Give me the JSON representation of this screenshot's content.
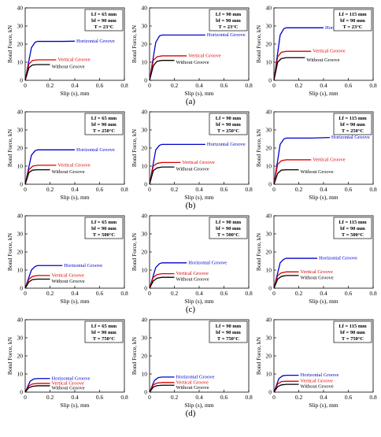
{
  "figure": {
    "row_labels": [
      "(a)",
      "(b)",
      "(c)",
      "(d)"
    ],
    "xlabel": "Slip (s), mm",
    "ylabel": "Bond Force, kN"
  },
  "chart_data": [
    {
      "type": "line",
      "row": 0,
      "col": 0,
      "legend": [
        "Lf = 65 mm",
        "bf = 90 mm",
        "T = 23°C"
      ],
      "xlim": [
        0,
        0.8
      ],
      "ylim": [
        0,
        40
      ],
      "x_ticks": [
        0,
        0.2,
        0.4,
        0.6,
        0.8
      ],
      "y_ticks": [
        0,
        10,
        20,
        30,
        40
      ],
      "xlabel": "Slip (s), mm",
      "ylabel": "Bond Force, kN",
      "series": [
        {
          "name": "Horizontal Groove",
          "color": "#0000cc",
          "x": [
            0,
            0.05,
            0.08,
            0.1,
            0.2,
            0.3,
            0.4
          ],
          "y": [
            0,
            18,
            21,
            21.5,
            21.5,
            21.5,
            21.6
          ]
        },
        {
          "name": "Vertical Groove",
          "color": "#dd0000",
          "x": [
            0,
            0.03,
            0.06,
            0.1,
            0.2,
            0.25
          ],
          "y": [
            0,
            9,
            11,
            11.3,
            11.3,
            11.3
          ]
        },
        {
          "name": "Without Groove",
          "color": "#000000",
          "x": [
            0,
            0.03,
            0.06,
            0.1,
            0.15,
            0.2
          ],
          "y": [
            0,
            7,
            8.5,
            8.7,
            8.7,
            8.7
          ]
        }
      ]
    },
    {
      "type": "line",
      "row": 0,
      "col": 1,
      "legend": [
        "Lf = 90 mm",
        "bf = 90 mm",
        "T = 23°C"
      ],
      "xlim": [
        0,
        0.8
      ],
      "ylim": [
        0,
        40
      ],
      "x_ticks": [
        0,
        0.2,
        0.4,
        0.6,
        0.8
      ],
      "y_ticks": [
        0,
        10,
        20,
        30,
        40
      ],
      "xlabel": "Slip (s), mm",
      "ylabel": "Bond Force, kN",
      "series": [
        {
          "name": "Horizontal Groove",
          "color": "#0000cc",
          "x": [
            0,
            0.05,
            0.08,
            0.1,
            0.2,
            0.3,
            0.45
          ],
          "y": [
            0,
            21,
            24.5,
            25,
            25,
            25,
            25
          ]
        },
        {
          "name": "Vertical Groove",
          "color": "#dd0000",
          "x": [
            0,
            0.03,
            0.06,
            0.1,
            0.2,
            0.3
          ],
          "y": [
            0,
            11,
            13,
            13.5,
            13.5,
            13.5
          ]
        },
        {
          "name": "Without Groove",
          "color": "#000000",
          "x": [
            0,
            0.03,
            0.06,
            0.1,
            0.15,
            0.2
          ],
          "y": [
            0,
            8,
            10.5,
            11,
            11,
            11
          ]
        }
      ]
    },
    {
      "type": "line",
      "row": 0,
      "col": 2,
      "legend": [
        "Lf = 115 mm",
        "bf = 90 mm",
        "T = 23°C"
      ],
      "xlim": [
        0,
        0.8
      ],
      "ylim": [
        0,
        40
      ],
      "x_ticks": [
        0,
        0.2,
        0.4,
        0.6,
        0.8
      ],
      "y_ticks": [
        0,
        10,
        20,
        30,
        40
      ],
      "xlabel": "Slip (s), mm",
      "ylabel": "Bond Force, kN",
      "series": [
        {
          "name": "Horizontal Groove",
          "color": "#0000cc",
          "x": [
            0,
            0.05,
            0.08,
            0.1,
            0.2,
            0.3,
            0.4
          ],
          "y": [
            0,
            25,
            28.5,
            29,
            29,
            29,
            29
          ]
        },
        {
          "name": "Vertical Groove",
          "color": "#dd0000",
          "x": [
            0,
            0.03,
            0.06,
            0.1,
            0.2,
            0.3
          ],
          "y": [
            0,
            13,
            15.5,
            16,
            16,
            16
          ]
        },
        {
          "name": "Without Groove",
          "color": "#000000",
          "x": [
            0,
            0.03,
            0.06,
            0.1,
            0.2,
            0.25
          ],
          "y": [
            0,
            10,
            12,
            12.5,
            12.5,
            12.5
          ]
        }
      ]
    },
    {
      "type": "line",
      "row": 1,
      "col": 0,
      "legend": [
        "Lf = 65 mm",
        "bf = 90 mm",
        "T = 250°C"
      ],
      "xlim": [
        0,
        0.8
      ],
      "ylim": [
        0,
        40
      ],
      "x_ticks": [
        0,
        0.2,
        0.4,
        0.6,
        0.8
      ],
      "y_ticks": [
        0,
        10,
        20,
        30,
        40
      ],
      "xlabel": "Slip (s), mm",
      "ylabel": "Bond Force, kN",
      "series": [
        {
          "name": "Horizontal Groove",
          "color": "#0000cc",
          "x": [
            0,
            0.05,
            0.08,
            0.1,
            0.2,
            0.3,
            0.4
          ],
          "y": [
            0,
            16,
            18.5,
            19,
            19,
            19,
            19
          ]
        },
        {
          "name": "Vertical Groove",
          "color": "#dd0000",
          "x": [
            0,
            0.03,
            0.06,
            0.1,
            0.2,
            0.25
          ],
          "y": [
            0,
            8,
            10,
            10.5,
            10.5,
            10.5
          ]
        },
        {
          "name": "Without Groove",
          "color": "#000000",
          "x": [
            0,
            0.03,
            0.06,
            0.1,
            0.15,
            0.2
          ],
          "y": [
            0,
            6.5,
            7.8,
            8,
            8,
            8
          ]
        }
      ]
    },
    {
      "type": "line",
      "row": 1,
      "col": 1,
      "legend": [
        "Lf = 90 mm",
        "bf = 90 mm",
        "T = 250°C"
      ],
      "xlim": [
        0,
        0.8
      ],
      "ylim": [
        0,
        40
      ],
      "x_ticks": [
        0,
        0.2,
        0.4,
        0.6,
        0.8
      ],
      "y_ticks": [
        0,
        10,
        20,
        30,
        40
      ],
      "xlabel": "Slip (s), mm",
      "ylabel": "Bond Force, kN",
      "series": [
        {
          "name": "Horizontal Groove",
          "color": "#0000cc",
          "x": [
            0,
            0.05,
            0.08,
            0.1,
            0.2,
            0.3,
            0.45
          ],
          "y": [
            0,
            19,
            21.5,
            22,
            22,
            22,
            22
          ]
        },
        {
          "name": "Vertical Groove",
          "color": "#dd0000",
          "x": [
            0,
            0.03,
            0.06,
            0.1,
            0.2,
            0.25
          ],
          "y": [
            0,
            10,
            11.5,
            12,
            12,
            12
          ]
        },
        {
          "name": "Without Groove",
          "color": "#000000",
          "x": [
            0,
            0.03,
            0.06,
            0.1,
            0.15,
            0.2
          ],
          "y": [
            0,
            7.5,
            9,
            9.5,
            9.5,
            9.5
          ]
        }
      ]
    },
    {
      "type": "line",
      "row": 1,
      "col": 2,
      "legend": [
        "Lf = 115 mm",
        "bf = 90 mm",
        "T = 250°C"
      ],
      "xlim": [
        0,
        0.8
      ],
      "ylim": [
        0,
        40
      ],
      "x_ticks": [
        0,
        0.2,
        0.4,
        0.6,
        0.8
      ],
      "y_ticks": [
        0,
        10,
        20,
        30,
        40
      ],
      "xlabel": "Slip (s), mm",
      "ylabel": "Bond Force, kN",
      "series": [
        {
          "name": "Horizontal Groove",
          "color": "#0000cc",
          "x": [
            0,
            0.05,
            0.08,
            0.1,
            0.2,
            0.3,
            0.45
          ],
          "y": [
            0,
            22,
            25,
            25.5,
            25.5,
            25.5,
            25.8
          ]
        },
        {
          "name": "Vertical Groove",
          "color": "#dd0000",
          "x": [
            0,
            0.03,
            0.06,
            0.1,
            0.2,
            0.3
          ],
          "y": [
            0,
            11,
            13,
            13.5,
            13.5,
            13.5
          ]
        },
        {
          "name": "Without Groove",
          "color": "#000000",
          "x": [
            0,
            0.03,
            0.06,
            0.1,
            0.15,
            0.2
          ],
          "y": [
            0,
            6,
            7.8,
            8,
            8,
            8
          ]
        }
      ]
    },
    {
      "type": "line",
      "row": 2,
      "col": 0,
      "legend": [
        "Lf = 65 mm",
        "bf = 90 mm",
        "T = 500°C"
      ],
      "xlim": [
        0,
        0.8
      ],
      "ylim": [
        0,
        40
      ],
      "x_ticks": [
        0,
        0.2,
        0.4,
        0.6,
        0.8
      ],
      "y_ticks": [
        0,
        10,
        20,
        30,
        40
      ],
      "xlabel": "Slip (s), mm",
      "ylabel": "Bond Force, kN",
      "series": [
        {
          "name": "Horizontal Groove",
          "color": "#0000cc",
          "x": [
            0,
            0.05,
            0.08,
            0.1,
            0.2,
            0.3
          ],
          "y": [
            0,
            10,
            12,
            12.5,
            12.5,
            12.5
          ]
        },
        {
          "name": "Vertical Groove",
          "color": "#dd0000",
          "x": [
            0,
            0.03,
            0.06,
            0.1,
            0.15,
            0.2
          ],
          "y": [
            0,
            5,
            6.5,
            7,
            7,
            7
          ]
        },
        {
          "name": "Without Groove",
          "color": "#000000",
          "x": [
            0,
            0.03,
            0.06,
            0.1,
            0.15,
            0.2
          ],
          "y": [
            0,
            3.5,
            4.8,
            5,
            5,
            5
          ]
        }
      ]
    },
    {
      "type": "line",
      "row": 2,
      "col": 1,
      "legend": [
        "Lf = 90 mm",
        "bf = 90 mm",
        "T = 500°C"
      ],
      "xlim": [
        0,
        0.8
      ],
      "ylim": [
        0,
        40
      ],
      "x_ticks": [
        0,
        0.2,
        0.4,
        0.6,
        0.8
      ],
      "y_ticks": [
        0,
        10,
        20,
        30,
        40
      ],
      "xlabel": "Slip (s), mm",
      "ylabel": "Bond Force, kN",
      "series": [
        {
          "name": "Horizontal Groove",
          "color": "#0000cc",
          "x": [
            0,
            0.05,
            0.08,
            0.1,
            0.2,
            0.3
          ],
          "y": [
            0,
            11.5,
            13.5,
            14,
            14,
            14
          ]
        },
        {
          "name": "Vertical Groove",
          "color": "#dd0000",
          "x": [
            0,
            0.03,
            0.06,
            0.1,
            0.15,
            0.2
          ],
          "y": [
            0,
            6,
            7.5,
            8,
            8,
            8
          ]
        },
        {
          "name": "Without Groove",
          "color": "#000000",
          "x": [
            0,
            0.03,
            0.06,
            0.1,
            0.15,
            0.2
          ],
          "y": [
            0,
            4,
            5.5,
            6,
            6,
            6
          ]
        }
      ]
    },
    {
      "type": "line",
      "row": 2,
      "col": 2,
      "legend": [
        "Lf = 115 mm",
        "bf = 90 mm",
        "T = 500°C"
      ],
      "xlim": [
        0,
        0.8
      ],
      "ylim": [
        0,
        40
      ],
      "x_ticks": [
        0,
        0.2,
        0.4,
        0.6,
        0.8
      ],
      "y_ticks": [
        0,
        10,
        20,
        30,
        40
      ],
      "xlabel": "Slip (s), mm",
      "ylabel": "Bond Force, kN",
      "series": [
        {
          "name": "Horizontal Groove",
          "color": "#0000cc",
          "x": [
            0,
            0.05,
            0.08,
            0.1,
            0.2,
            0.35
          ],
          "y": [
            0,
            14,
            16,
            16.5,
            16.5,
            16.5
          ]
        },
        {
          "name": "Vertical Groove",
          "color": "#dd0000",
          "x": [
            0,
            0.03,
            0.06,
            0.1,
            0.15,
            0.2
          ],
          "y": [
            0,
            7,
            8.5,
            9,
            9,
            9
          ]
        },
        {
          "name": "Without Groove",
          "color": "#000000",
          "x": [
            0,
            0.03,
            0.06,
            0.1,
            0.15,
            0.2
          ],
          "y": [
            0,
            5,
            6.5,
            7,
            7,
            7
          ]
        }
      ]
    },
    {
      "type": "line",
      "row": 3,
      "col": 0,
      "legend": [
        "Lf = 65 mm",
        "bf = 90 mm",
        "T = 750°C"
      ],
      "xlim": [
        0,
        0.8
      ],
      "ylim": [
        0,
        40
      ],
      "x_ticks": [
        0,
        0.2,
        0.4,
        0.6,
        0.8
      ],
      "y_ticks": [
        0,
        10,
        20,
        30,
        40
      ],
      "xlabel": "Slip (s), mm",
      "ylabel": "Bond Force, kN",
      "series": [
        {
          "name": "Horizontal Groove",
          "color": "#0000cc",
          "x": [
            0,
            0.04,
            0.07,
            0.1,
            0.15,
            0.2
          ],
          "y": [
            0,
            6,
            7.3,
            7.5,
            7.5,
            7.5
          ]
        },
        {
          "name": "Vertical Groove",
          "color": "#dd0000",
          "x": [
            0,
            0.03,
            0.06,
            0.1,
            0.15,
            0.2
          ],
          "y": [
            0,
            3.5,
            4.5,
            4.8,
            4.8,
            4.8
          ]
        },
        {
          "name": "Without Groove",
          "color": "#000000",
          "x": [
            0,
            0.03,
            0.06,
            0.1,
            0.15,
            0.2
          ],
          "y": [
            0,
            2.5,
            3.2,
            3.5,
            3.5,
            3.5
          ]
        }
      ]
    },
    {
      "type": "line",
      "row": 3,
      "col": 1,
      "legend": [
        "Lf = 90 mm",
        "bf = 90 mm",
        "T = 750°C"
      ],
      "xlim": [
        0,
        0.8
      ],
      "ylim": [
        0,
        40
      ],
      "x_ticks": [
        0,
        0.2,
        0.4,
        0.6,
        0.8
      ],
      "y_ticks": [
        0,
        10,
        20,
        30,
        40
      ],
      "xlabel": "Slip (s), mm",
      "ylabel": "Bond Force, kN",
      "series": [
        {
          "name": "Horizontal Groove",
          "color": "#0000cc",
          "x": [
            0,
            0.04,
            0.07,
            0.1,
            0.15,
            0.2
          ],
          "y": [
            0,
            6.5,
            8,
            8.3,
            8.3,
            8.3
          ]
        },
        {
          "name": "Vertical Groove",
          "color": "#dd0000",
          "x": [
            0,
            0.03,
            0.06,
            0.1,
            0.15,
            0.2
          ],
          "y": [
            0,
            4,
            5,
            5.3,
            5.3,
            5.3
          ]
        },
        {
          "name": "Without Groove",
          "color": "#000000",
          "x": [
            0,
            0.03,
            0.06,
            0.1,
            0.15,
            0.2
          ],
          "y": [
            0,
            2.8,
            3.6,
            3.8,
            3.8,
            3.8
          ]
        }
      ]
    },
    {
      "type": "line",
      "row": 3,
      "col": 2,
      "legend": [
        "Lf = 115 mm",
        "bf = 90 mm",
        "T = 750°C"
      ],
      "xlim": [
        0,
        0.8
      ],
      "ylim": [
        0,
        40
      ],
      "x_ticks": [
        0,
        0.2,
        0.4,
        0.6,
        0.8
      ],
      "y_ticks": [
        0,
        10,
        20,
        30,
        40
      ],
      "xlabel": "Slip (s), mm",
      "ylabel": "Bond Force, kN",
      "series": [
        {
          "name": "Horizontal Groove",
          "color": "#0000cc",
          "x": [
            0,
            0.04,
            0.07,
            0.1,
            0.15,
            0.2
          ],
          "y": [
            0,
            7.5,
            9,
            9.3,
            9.3,
            9.3
          ]
        },
        {
          "name": "Vertical Groove",
          "color": "#dd0000",
          "x": [
            0,
            0.03,
            0.06,
            0.1,
            0.15,
            0.2
          ],
          "y": [
            0,
            4.5,
            5.8,
            6,
            6,
            6
          ]
        },
        {
          "name": "Without Groove",
          "color": "#000000",
          "x": [
            0,
            0.03,
            0.06,
            0.1,
            0.15,
            0.2
          ],
          "y": [
            0,
            3,
            4,
            4.3,
            4.3,
            4.3
          ]
        }
      ]
    }
  ]
}
